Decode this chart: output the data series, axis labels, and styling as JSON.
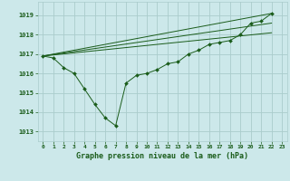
{
  "title": "Graphe pression niveau de la mer (hPa)",
  "background_color": "#cce8ea",
  "line_color": "#1a5c1a",
  "grid_color": "#aacccc",
  "ylim": [
    1012.5,
    1019.7
  ],
  "xlim": [
    -0.5,
    23.5
  ],
  "xticks": [
    0,
    1,
    2,
    3,
    4,
    5,
    6,
    7,
    8,
    9,
    10,
    11,
    12,
    13,
    14,
    15,
    16,
    17,
    18,
    19,
    20,
    21,
    22,
    23
  ],
  "yticks": [
    1013,
    1014,
    1015,
    1016,
    1017,
    1018,
    1019
  ],
  "main_x": [
    0,
    1,
    2,
    3,
    4,
    5,
    6,
    7,
    8,
    9,
    10,
    11,
    12,
    13,
    14,
    15,
    16,
    17,
    18,
    19,
    20,
    21,
    22
  ],
  "main_y": [
    1016.9,
    1016.8,
    1016.3,
    1016.0,
    1015.2,
    1014.4,
    1013.7,
    1013.3,
    1015.5,
    1015.9,
    1016.0,
    1016.2,
    1016.5,
    1016.6,
    1017.0,
    1017.2,
    1017.5,
    1017.6,
    1017.7,
    1018.0,
    1018.6,
    1018.7,
    1019.1
  ],
  "trend_lines": [
    {
      "x": [
        0,
        22
      ],
      "y": [
        1016.9,
        1019.1
      ]
    },
    {
      "x": [
        0,
        22
      ],
      "y": [
        1016.9,
        1018.6
      ]
    },
    {
      "x": [
        0,
        22
      ],
      "y": [
        1016.9,
        1018.1
      ]
    }
  ]
}
